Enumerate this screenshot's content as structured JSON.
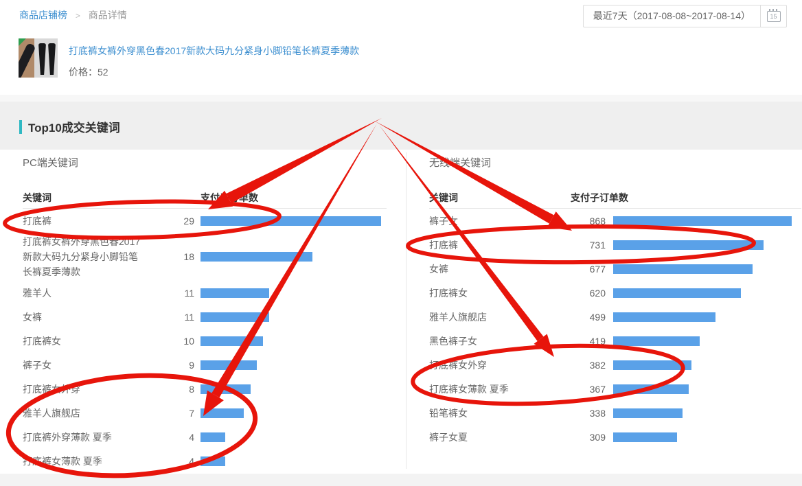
{
  "breadcrumb": {
    "items": [
      "商品店铺榜",
      "商品详情"
    ],
    "separator": ">"
  },
  "date_selector": {
    "label": "最近7天（2017-08-08~2017-08-14）",
    "calendar_day": "15"
  },
  "product": {
    "title": "打底裤女裤外穿黑色春2017新款大码九分紧身小脚铅笔长裤夏季薄款",
    "price_label": "价格：52"
  },
  "section": {
    "title": "Top10成交关键词"
  },
  "panels": [
    {
      "id": "pc",
      "title": "PC端关键词",
      "kw_header": "关键词",
      "value_header": "支付子订单数",
      "rows": [
        {
          "keyword": "打底裤",
          "value": 29
        },
        {
          "keyword": "打底裤女裤外穿黑色春2017新款大码九分紧身小脚铅笔长裤夏季薄款",
          "value": 18
        },
        {
          "keyword": "雅羊人",
          "value": 11
        },
        {
          "keyword": "女裤",
          "value": 11
        },
        {
          "keyword": "打底裤女",
          "value": 10
        },
        {
          "keyword": "裤子女",
          "value": 9
        },
        {
          "keyword": "打底裤女外穿",
          "value": 8
        },
        {
          "keyword": "雅羊人旗舰店",
          "value": 7
        },
        {
          "keyword": "打底裤外穿薄款 夏季",
          "value": 4
        },
        {
          "keyword": "打底裤女薄款 夏季",
          "value": 4
        }
      ]
    },
    {
      "id": "wireless",
      "title": "无线端关键词",
      "kw_header": "关键词",
      "value_header": "支付子订单数",
      "rows": [
        {
          "keyword": "裤子女",
          "value": 868
        },
        {
          "keyword": "打底裤",
          "value": 731
        },
        {
          "keyword": "女裤",
          "value": 677
        },
        {
          "keyword": "打底裤女",
          "value": 620
        },
        {
          "keyword": "雅羊人旗舰店",
          "value": 499
        },
        {
          "keyword": "黑色裤子女",
          "value": 419
        },
        {
          "keyword": "打底裤女外穿",
          "value": 382
        },
        {
          "keyword": "打底裤女薄款 夏季",
          "value": 367
        },
        {
          "keyword": "铅笔裤女",
          "value": 338
        },
        {
          "keyword": "裤子女夏",
          "value": 309
        }
      ]
    }
  ],
  "colors": {
    "bar": "#5aa1e8",
    "annotation": "#e7150b",
    "accent": "#2fb8c3",
    "link": "#3d8fd0"
  },
  "chart_data": [
    {
      "type": "bar",
      "title": "PC端关键词 支付子订单数",
      "categories": [
        "打底裤",
        "打底裤女裤外穿黑色春2017新款大码九分紧身小脚铅笔长裤夏季薄款",
        "雅羊人",
        "女裤",
        "打底裤女",
        "裤子女",
        "打底裤女外穿",
        "雅羊人旗舰店",
        "打底裤外穿薄款 夏季",
        "打底裤女薄款 夏季"
      ],
      "values": [
        29,
        18,
        11,
        11,
        10,
        9,
        8,
        7,
        4,
        4
      ],
      "xlabel": "",
      "ylabel": "支付子订单数",
      "orientation": "horizontal"
    },
    {
      "type": "bar",
      "title": "无线端关键词 支付子订单数",
      "categories": [
        "裤子女",
        "打底裤",
        "女裤",
        "打底裤女",
        "雅羊人旗舰店",
        "黑色裤子女",
        "打底裤女外穿",
        "打底裤女薄款 夏季",
        "铅笔裤女",
        "裤子女夏"
      ],
      "values": [
        868,
        731,
        677,
        620,
        499,
        419,
        382,
        367,
        338,
        309
      ],
      "xlabel": "",
      "ylabel": "支付子订单数",
      "orientation": "horizontal"
    }
  ]
}
